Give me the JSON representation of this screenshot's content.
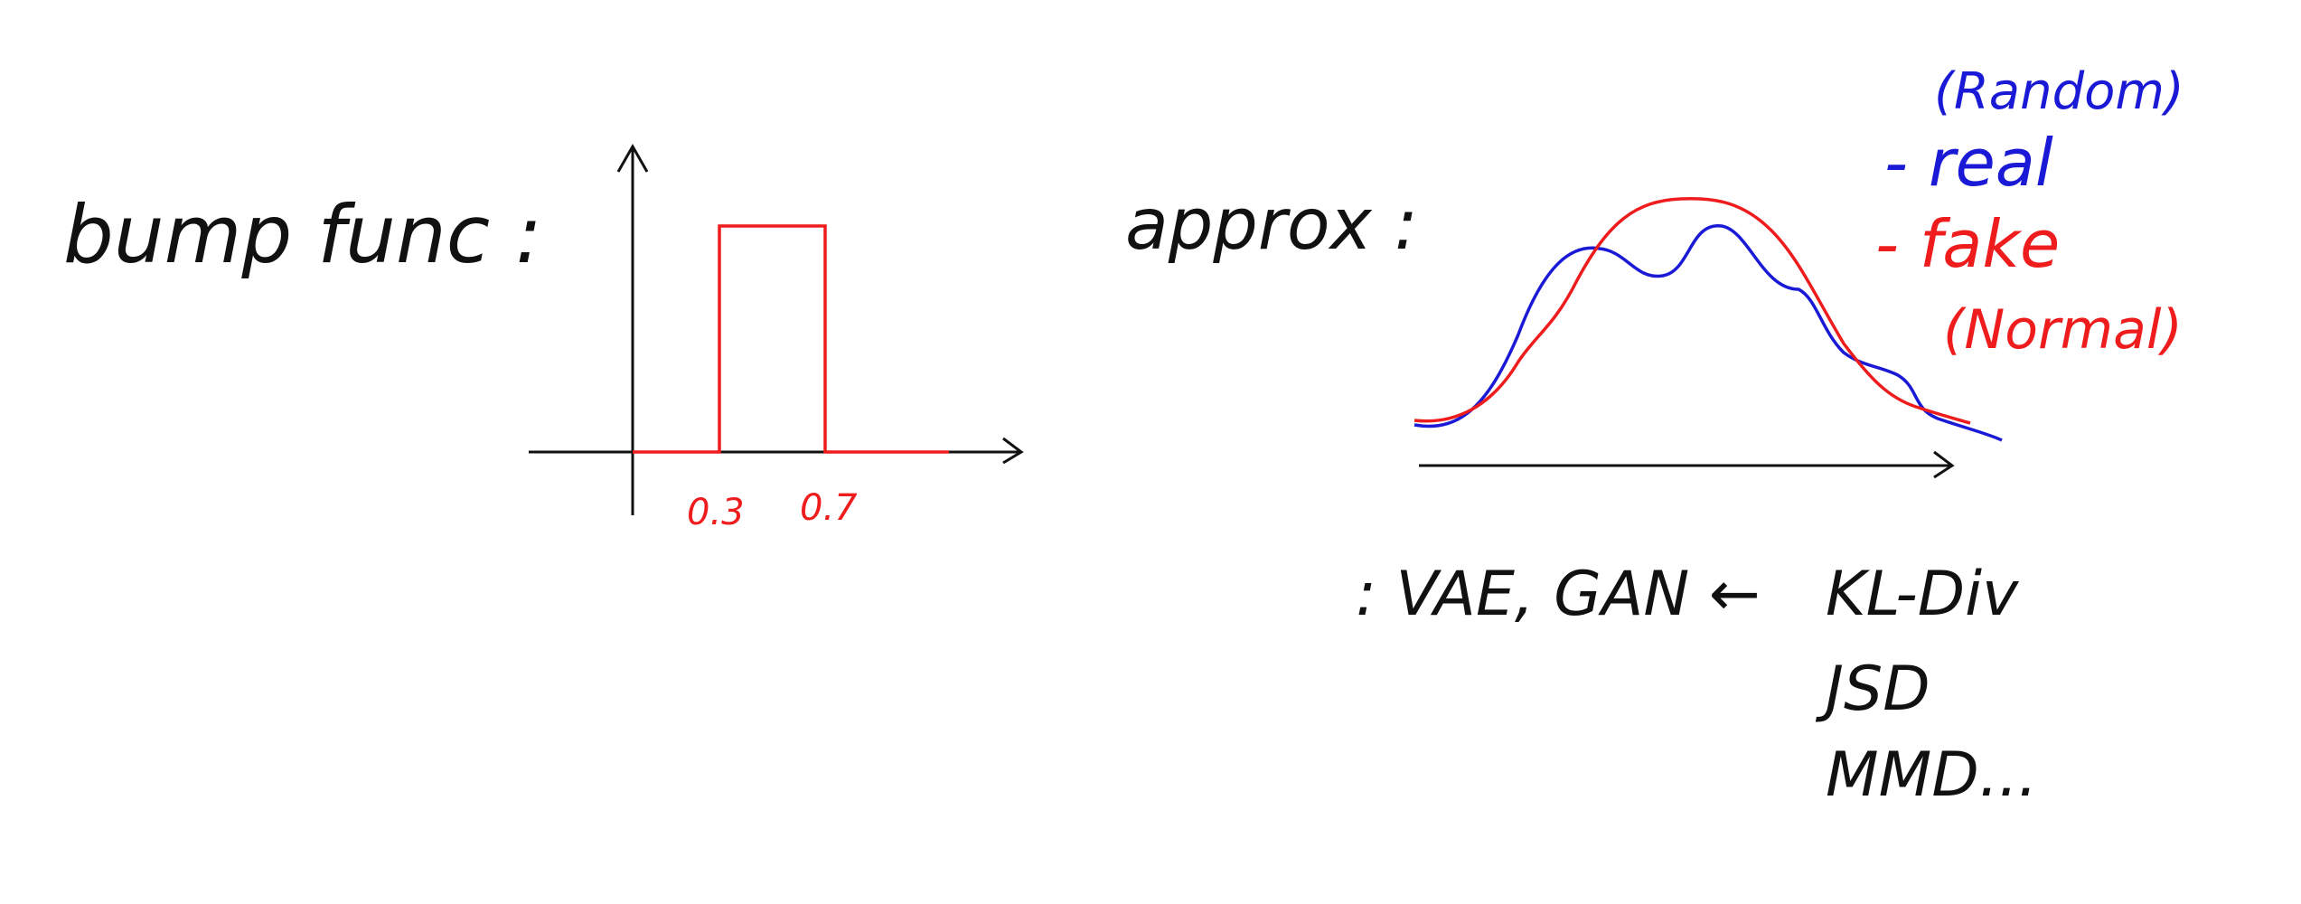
{
  "colors": {
    "ink": "#111111",
    "red": "#ee1c1c",
    "blue": "#1a1ad6",
    "background": "#ffffff"
  },
  "left": {
    "label": "bump func :",
    "tick_labels": [
      "0.3",
      "0.7"
    ]
  },
  "right": {
    "label": "approx :",
    "legend": {
      "random": "(Random)",
      "real": "- real",
      "fake": "- fake",
      "normal": "(Normal)"
    },
    "models": ": VAE, GAN ←",
    "metrics": [
      "KL-Div",
      "JSD",
      "MMD..."
    ]
  }
}
